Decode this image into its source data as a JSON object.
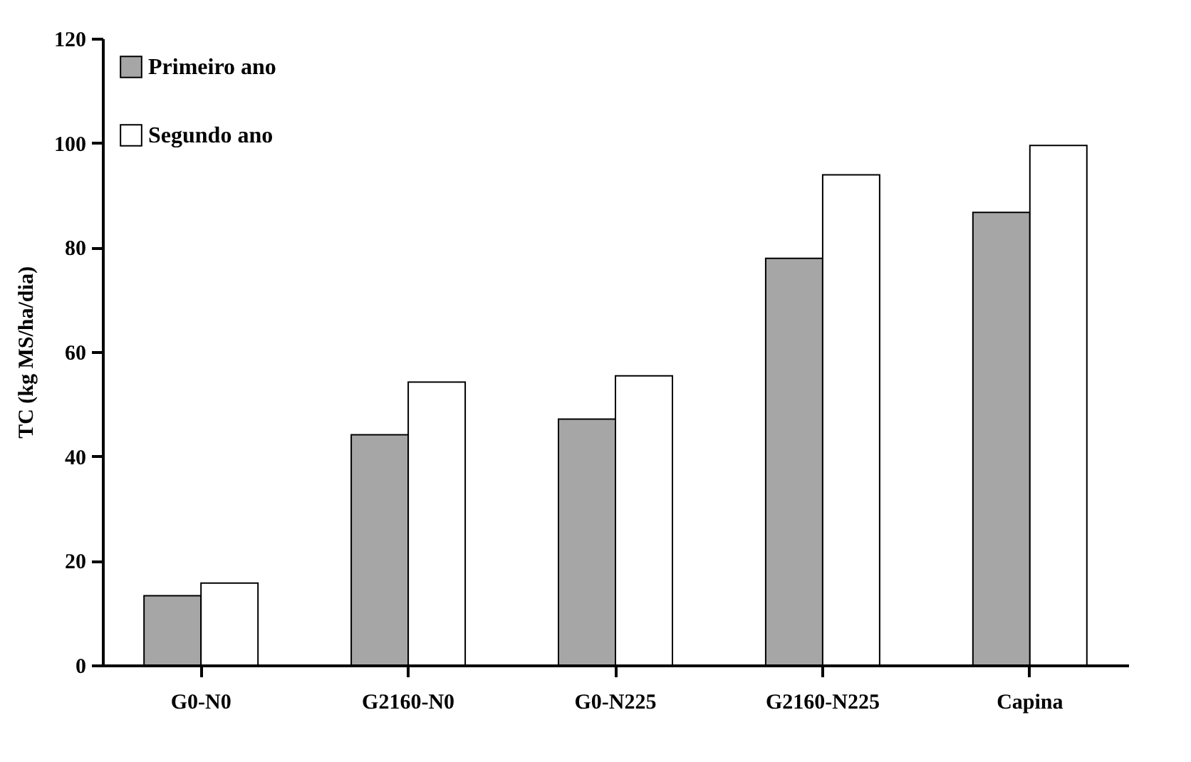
{
  "chart_data": {
    "type": "bar",
    "ylabel": "TC (kg MS/ha/dia)",
    "categories": [
      "G0-N0",
      "G2160-N0",
      "G0-N225",
      "G2160-N225",
      "Capina"
    ],
    "series": [
      {
        "name": "Primeiro ano",
        "color": "#a6a6a6",
        "values": [
          13.3,
          44.1,
          47.1,
          77.9,
          86.7
        ]
      },
      {
        "name": "Segundo ano",
        "color": "#ffffff",
        "values": [
          15.7,
          54.2,
          55.4,
          93.9,
          99.5
        ]
      }
    ],
    "ylim": [
      0,
      120
    ],
    "yticks": [
      0,
      20,
      40,
      60,
      80,
      100,
      120
    ],
    "grid": false,
    "legend": "top left"
  }
}
